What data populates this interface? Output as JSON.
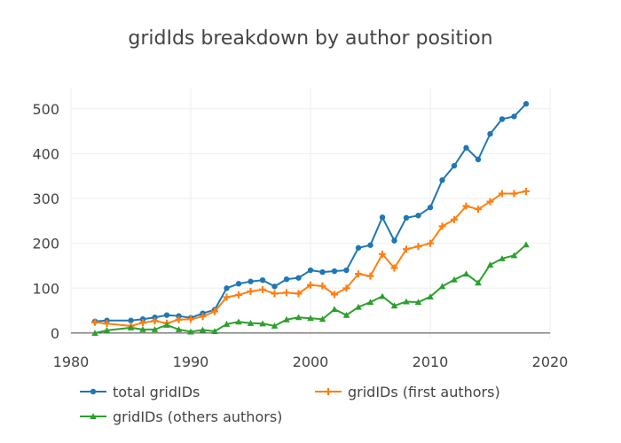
{
  "chart_data": {
    "type": "line",
    "title": "gridIds breakdown by author position",
    "xlabel": "",
    "ylabel": "",
    "xlim": [
      1980,
      2020
    ],
    "ylim": [
      -12,
      545
    ],
    "x_ticks": [
      1980,
      1990,
      2000,
      2010,
      2020
    ],
    "y_ticks": [
      0,
      100,
      200,
      300,
      400,
      500
    ],
    "grid": true,
    "legend_position": "bottom",
    "series": [
      {
        "name": "total gridIDs",
        "color": "#1f77b4",
        "marker": "circle",
        "x": [
          1982,
          1983,
          1985,
          1986,
          1987,
          1988,
          1989,
          1990,
          1991,
          1992,
          1993,
          1994,
          1995,
          1996,
          1997,
          1998,
          1999,
          2000,
          2001,
          2002,
          2003,
          2004,
          2005,
          2006,
          2007,
          2008,
          2009,
          2010,
          2011,
          2012,
          2013,
          2014,
          2015,
          2016,
          2017,
          2018
        ],
        "y": [
          26,
          28,
          28,
          31,
          35,
          40,
          38,
          34,
          44,
          52,
          100,
          110,
          115,
          118,
          104,
          120,
          123,
          140,
          136,
          138,
          140,
          190,
          196,
          258,
          206,
          257,
          262,
          280,
          341,
          373,
          413,
          387,
          444,
          477,
          483,
          511
        ]
      },
      {
        "name": "gridIDs (first authors)",
        "color": "#ff7f0e",
        "marker": "cross",
        "x": [
          1982,
          1983,
          1985,
          1986,
          1987,
          1988,
          1989,
          1990,
          1991,
          1992,
          1993,
          1994,
          1995,
          1996,
          1997,
          1998,
          1999,
          2000,
          2001,
          2002,
          2003,
          2004,
          2005,
          2006,
          2007,
          2008,
          2009,
          2010,
          2011,
          2012,
          2013,
          2014,
          2015,
          2016,
          2017,
          2018
        ],
        "y": [
          24,
          21,
          16,
          23,
          27,
          22,
          30,
          31,
          37,
          48,
          80,
          85,
          93,
          97,
          88,
          90,
          88,
          107,
          105,
          86,
          100,
          132,
          127,
          176,
          145,
          187,
          193,
          200,
          238,
          253,
          283,
          276,
          293,
          311,
          311,
          316
        ]
      },
      {
        "name": "gridIDs (others authors)",
        "color": "#2ca02c",
        "marker": "triangle",
        "x": [
          1982,
          1983,
          1985,
          1986,
          1987,
          1988,
          1989,
          1990,
          1991,
          1992,
          1993,
          1994,
          1995,
          1996,
          1997,
          1998,
          1999,
          2000,
          2001,
          2002,
          2003,
          2004,
          2005,
          2006,
          2007,
          2008,
          2009,
          2010,
          2011,
          2012,
          2013,
          2014,
          2015,
          2016,
          2017,
          2018
        ],
        "y": [
          0,
          6,
          12,
          8,
          8,
          18,
          8,
          3,
          7,
          4,
          20,
          25,
          22,
          21,
          16,
          30,
          35,
          33,
          31,
          53,
          40,
          58,
          69,
          82,
          61,
          70,
          69,
          81,
          104,
          119,
          132,
          112,
          152,
          166,
          173,
          197
        ]
      }
    ]
  }
}
